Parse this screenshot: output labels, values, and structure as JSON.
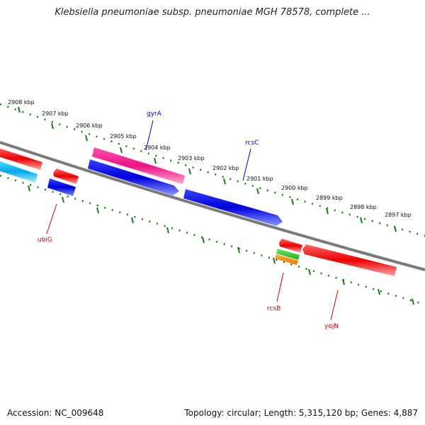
{
  "title": "Klebsiella pneumoniae subsp. pneumoniae MGH 78578, complete ...",
  "accession": "Accession: NC_009648",
  "summary": "Topology: circular; Length: 5,315,120 bp; Genes: 4,887",
  "ticks": [
    "2908 kbp",
    "2907 kbp",
    "2906 kbp",
    "2905 kbp",
    "2904 kbp",
    "2903 kbp",
    "2902 kbp",
    "2901 kbp",
    "2900 kbp",
    "2899 kbp",
    "2898 kbp",
    "2897 kbp"
  ],
  "gene_labels": {
    "gyrA": "gyrA",
    "rcsC": "rcsC",
    "ubiG": "ubiG",
    "rcsB": "rcsB",
    "yojN": "yojN"
  },
  "colors": {
    "backbone": "#808080",
    "ticks": "#1a7a1a",
    "red": "#ff0000",
    "blue": "#0000ee",
    "magenta": "#ff1493",
    "cyan": "#00bfff",
    "green": "#33cc33",
    "orange": "#ff8c00",
    "label_blue": "#0000cc",
    "label_red": "#cc0000"
  }
}
